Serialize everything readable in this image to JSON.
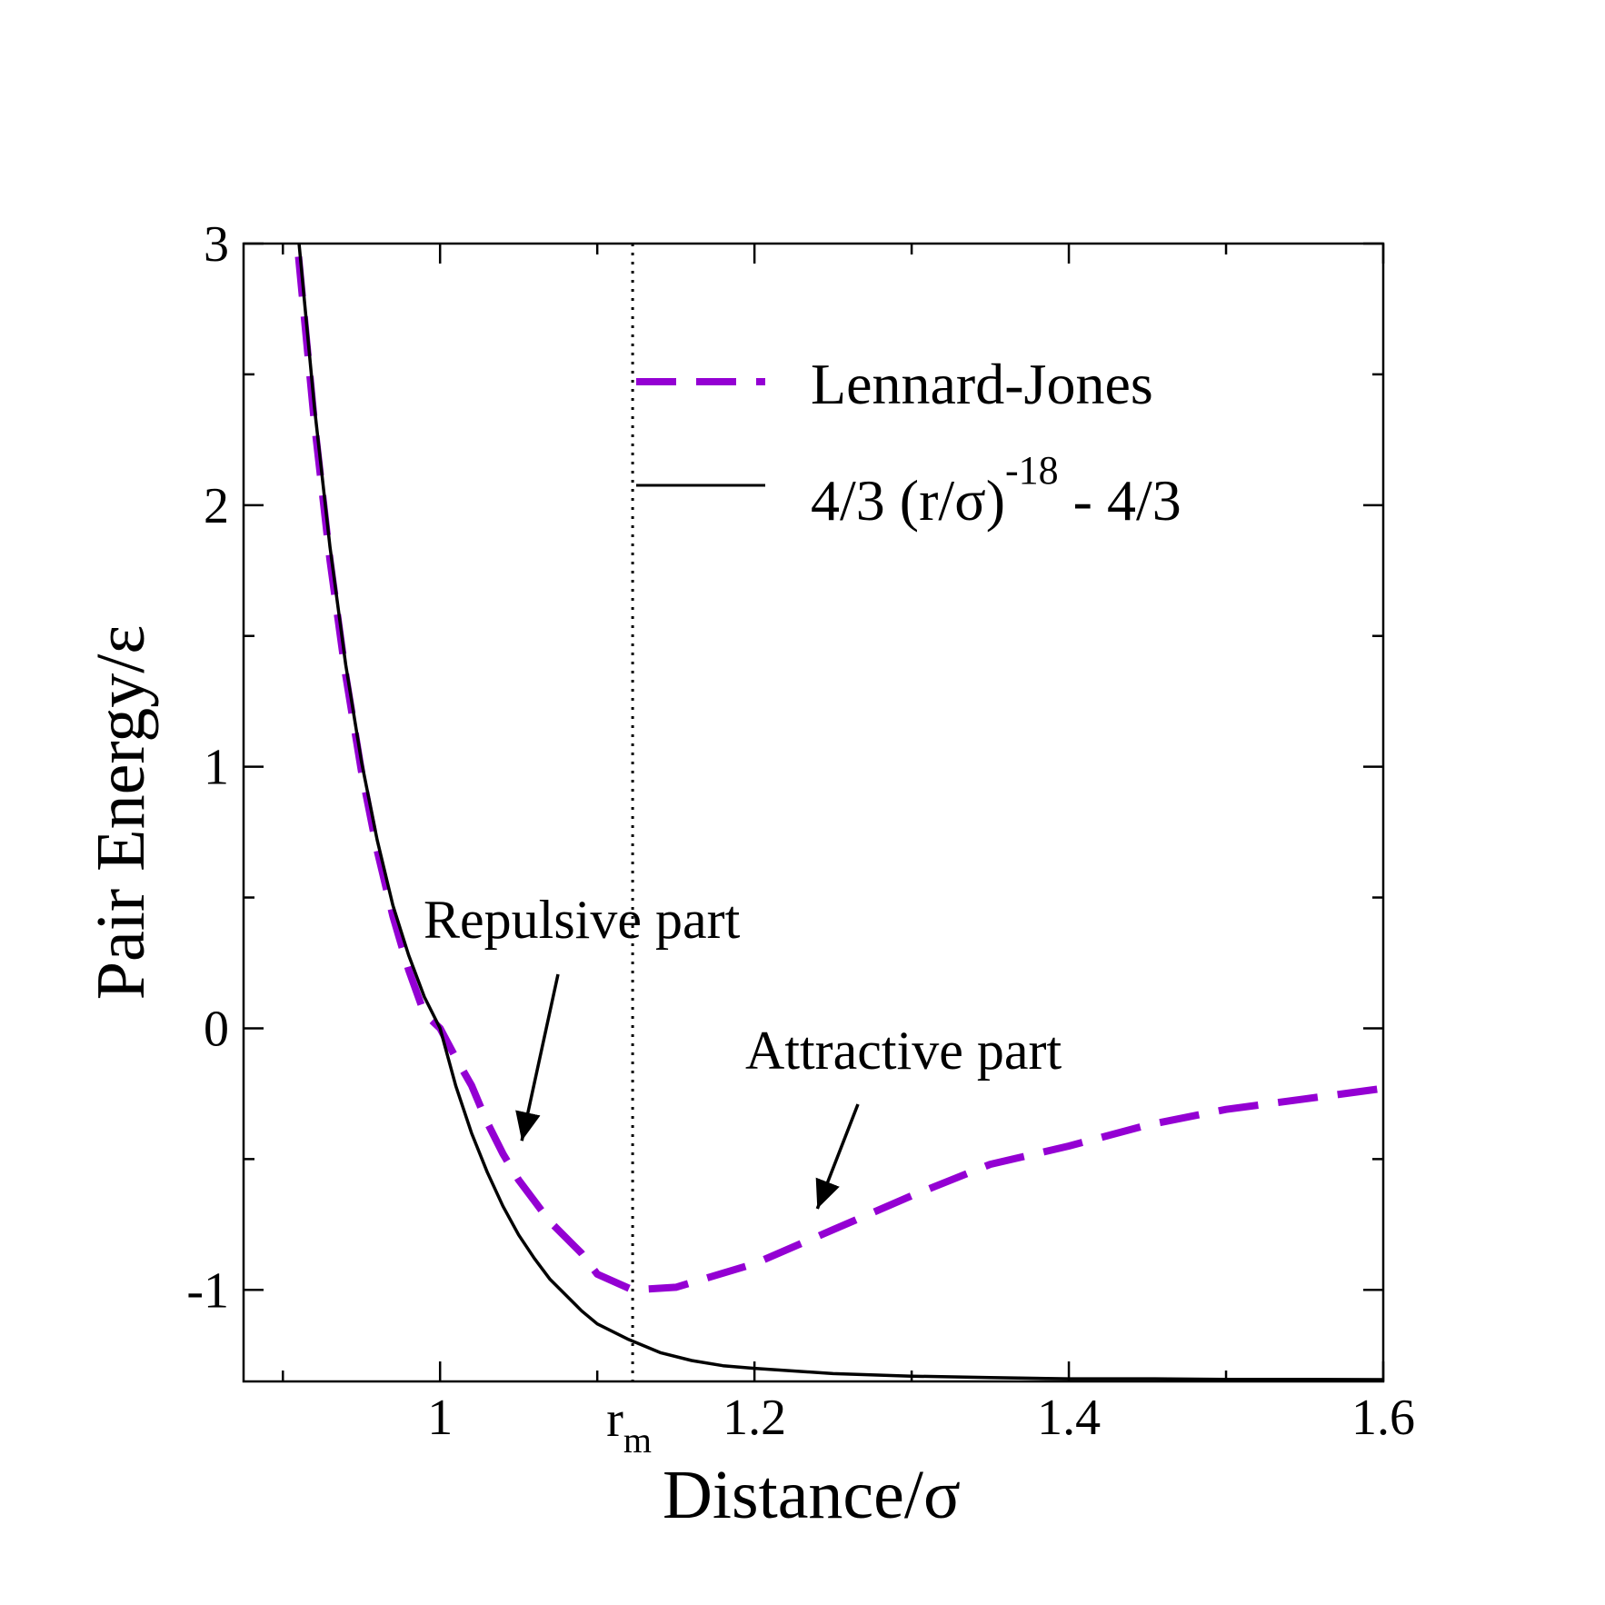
{
  "chart_data": {
    "type": "line",
    "title": "",
    "xlabel": "Distance/σ",
    "ylabel": "Pair Energy/ε",
    "xlim": [
      0.875,
      1.6
    ],
    "ylim": [
      -1.35,
      3
    ],
    "grid": false,
    "x_ticks": [
      {
        "value": 1,
        "label": "1"
      },
      {
        "value": 1.2,
        "label": "1.2"
      },
      {
        "value": 1.4,
        "label": "1.4"
      },
      {
        "value": 1.6,
        "label": "1.6"
      }
    ],
    "x_minor_ticks": [
      0.9,
      1.1,
      1.3,
      1.5
    ],
    "y_ticks": [
      {
        "value": -1,
        "label": "-1"
      },
      {
        "value": 0,
        "label": "0"
      },
      {
        "value": 1,
        "label": "1"
      },
      {
        "value": 2,
        "label": "2"
      },
      {
        "value": 3,
        "label": "3"
      }
    ],
    "y_minor_ticks": [
      -0.5,
      0.5,
      1.5,
      2.5
    ],
    "rm_marker": {
      "x": 1.1225,
      "label_main": "r",
      "label_sub": "m"
    },
    "legend_placement": "top-right",
    "series": [
      {
        "name": "Lennard-Jones",
        "style": "dashed",
        "color": "#9400D3",
        "x": [
          0.91,
          0.92,
          0.93,
          0.94,
          0.95,
          0.96,
          0.97,
          0.98,
          0.99,
          1.0,
          1.01,
          1.02,
          1.03,
          1.04,
          1.05,
          1.06,
          1.07,
          1.08,
          1.09,
          1.1,
          1.1225,
          1.15,
          1.2,
          1.25,
          1.3,
          1.35,
          1.4,
          1.45,
          1.5,
          1.55,
          1.6
        ],
        "values": [
          2.95,
          2.32,
          1.79,
          1.35,
          0.983,
          0.68,
          0.429,
          0.224,
          0.056,
          0.0,
          -0.113,
          -0.218,
          -0.36,
          -0.48,
          -0.58,
          -0.66,
          -0.74,
          -0.8,
          -0.86,
          -0.94,
          -1.0,
          -0.99,
          -0.9,
          -0.77,
          -0.64,
          -0.52,
          -0.45,
          -0.37,
          -0.31,
          -0.27,
          -0.23
        ]
      },
      {
        "name": "4/3 (r/σ)^-18 - 4/3",
        "style": "solid",
        "color": "#000000",
        "x": [
          0.91,
          0.92,
          0.93,
          0.94,
          0.95,
          0.96,
          0.97,
          0.98,
          0.99,
          1.0,
          1.01,
          1.02,
          1.03,
          1.04,
          1.05,
          1.06,
          1.07,
          1.08,
          1.09,
          1.1,
          1.12,
          1.14,
          1.16,
          1.18,
          1.2,
          1.25,
          1.3,
          1.35,
          1.4,
          1.45,
          1.5,
          1.55,
          1.6
        ],
        "values": [
          3.02,
          2.38,
          1.84,
          1.39,
          1.02,
          0.72,
          0.47,
          0.28,
          0.12,
          0.0,
          -0.22,
          -0.4,
          -0.55,
          -0.68,
          -0.79,
          -0.88,
          -0.96,
          -1.02,
          -1.08,
          -1.13,
          -1.19,
          -1.24,
          -1.27,
          -1.29,
          -1.3,
          -1.32,
          -1.33,
          -1.335,
          -1.34,
          -1.34,
          -1.342,
          -1.342,
          -1.343
        ]
      }
    ],
    "legend": {
      "entries": [
        {
          "label": "Lennard-Jones"
        },
        {
          "label_main": "4/3 (r/σ)",
          "label_sup": "-18",
          "label_tail": " - 4/3"
        }
      ]
    },
    "annotations": [
      {
        "text": "Repulsive part",
        "arrow_to": {
          "x": 1.052,
          "y": -0.43
        }
      },
      {
        "text": "Attractive part",
        "arrow_to": {
          "x": 1.24,
          "y": -0.69
        }
      }
    ]
  }
}
